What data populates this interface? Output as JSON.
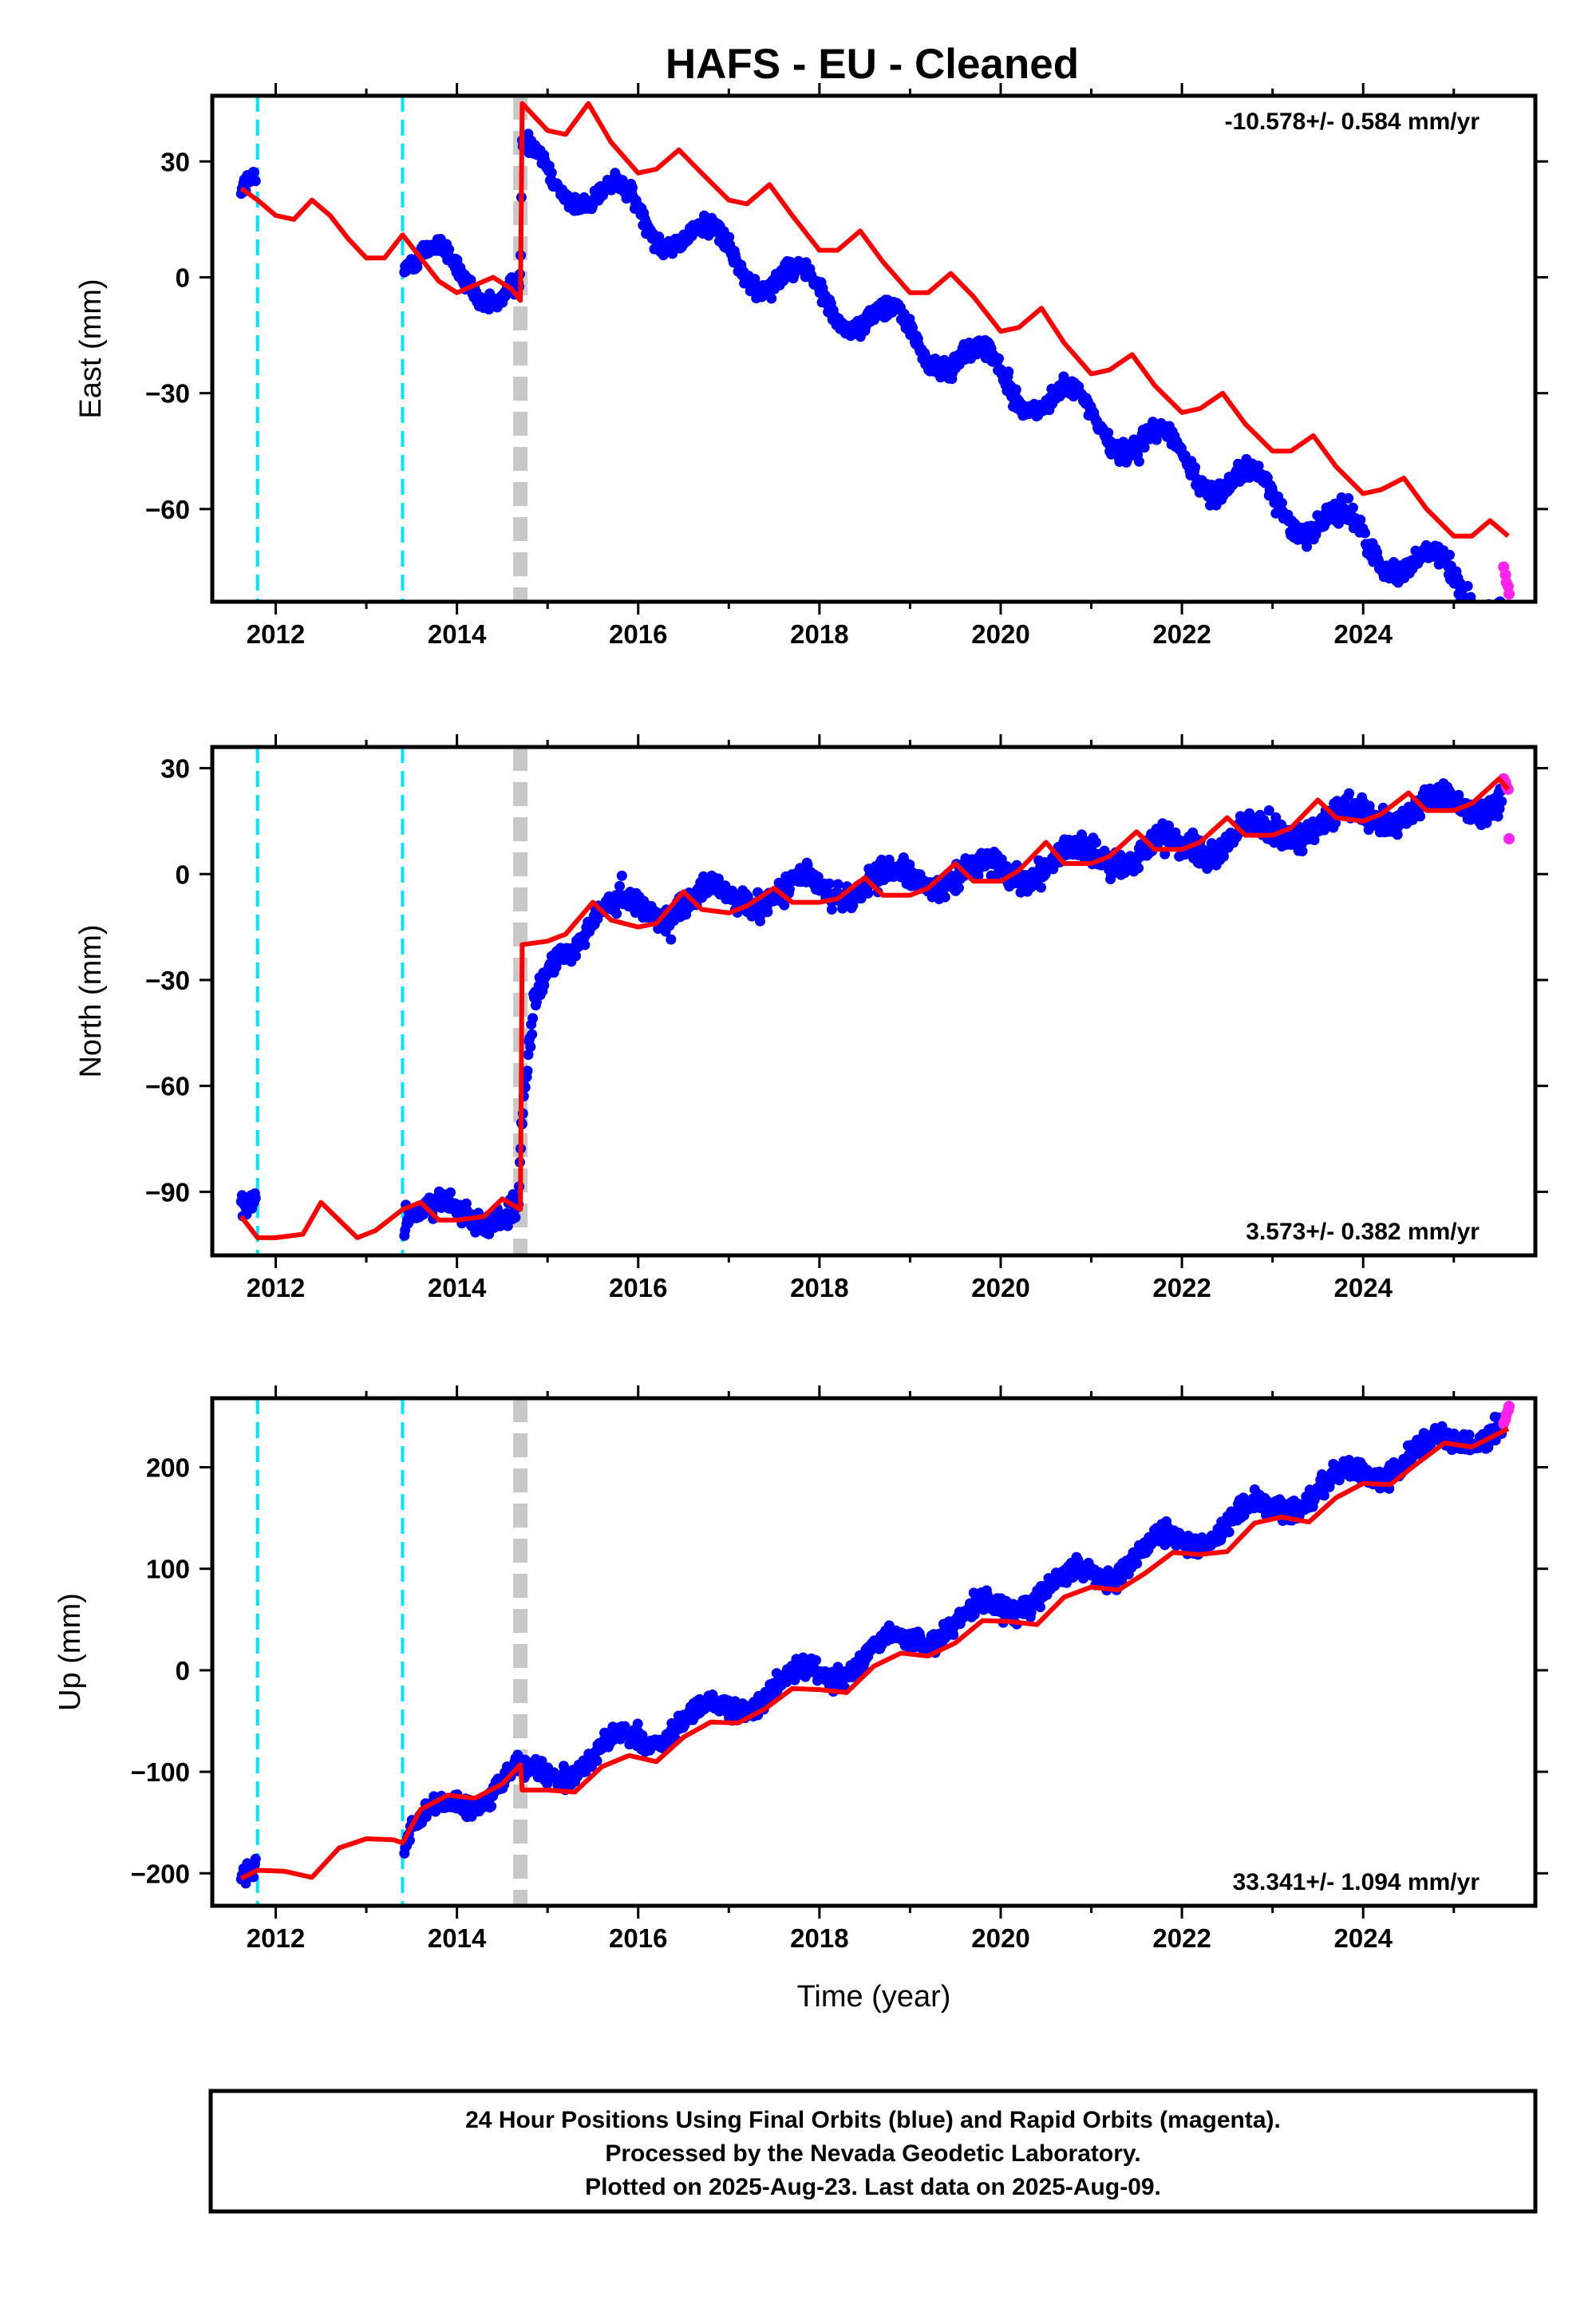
{
  "title": "HAFS  - EU - Cleaned",
  "colors": {
    "final_orbits": "#0000ff",
    "rapid_orbits": "#ff22ee",
    "model": "#ff0000",
    "equipment_change": "#00e5ff",
    "earthquake": "#c8c8c8"
  },
  "caption": {
    "line1": "24 Hour Positions Using Final Orbits (blue) and Rapid Orbits (magenta).",
    "line2": "Processed by the Nevada Geodetic Laboratory.",
    "line3": "Plotted on 2025-Aug-23. Last data on 2025-Aug-09."
  },
  "chart_data": [
    {
      "type": "scatter",
      "component": "East",
      "ylabel": "East (mm)",
      "xlabel": "",
      "rate_label": "-10.578+/- 0.584 mm/yr",
      "rate_position": "top-right",
      "xlim": [
        2011.3,
        2025.9
      ],
      "ylim": [
        -84,
        47
      ],
      "xticks": [
        "2012",
        "2014",
        "2016",
        "2018",
        "2020",
        "2022",
        "2024"
      ],
      "yticks": [
        "30",
        "0",
        "−30",
        "−60"
      ],
      "ytick_values": [
        30,
        0,
        -30,
        -60
      ],
      "equipment_changes": [
        2011.8,
        2013.4
      ],
      "earthquake": 2014.7,
      "trend": {
        "knots": [
          [
            2011.62,
            21
          ],
          [
            2012.0,
            18
          ],
          [
            2014.7,
            -5
          ],
          [
            2014.72,
            30
          ],
          [
            2025.6,
            -85
          ]
        ],
        "amp": 5.5,
        "phase": 0.55,
        "noise": 1.8
      },
      "model_line": [
        [
          2011.62,
          23
        ],
        [
          2011.8,
          20
        ],
        [
          2012.0,
          16
        ],
        [
          2012.2,
          15
        ],
        [
          2012.4,
          20
        ],
        [
          2012.6,
          16
        ],
        [
          2012.8,
          10
        ],
        [
          2013.0,
          5
        ],
        [
          2013.2,
          5
        ],
        [
          2013.4,
          11
        ],
        [
          2013.6,
          5
        ],
        [
          2013.8,
          -1
        ],
        [
          2014.0,
          -4
        ],
        [
          2014.2,
          -2
        ],
        [
          2014.4,
          0
        ],
        [
          2014.6,
          -3
        ],
        [
          2014.7,
          -6
        ],
        [
          2014.72,
          45
        ],
        [
          2015.0,
          38
        ],
        [
          2015.2,
          37
        ],
        [
          2015.45,
          45
        ],
        [
          2015.7,
          35
        ],
        [
          2016.0,
          27
        ],
        [
          2016.2,
          28
        ],
        [
          2016.45,
          33
        ],
        [
          2016.7,
          27
        ],
        [
          2017.0,
          20
        ],
        [
          2017.2,
          19
        ],
        [
          2017.45,
          24
        ],
        [
          2017.7,
          16
        ],
        [
          2018.0,
          7
        ],
        [
          2018.2,
          7
        ],
        [
          2018.45,
          12
        ],
        [
          2018.7,
          4
        ],
        [
          2019.0,
          -4
        ],
        [
          2019.2,
          -4
        ],
        [
          2019.45,
          1
        ],
        [
          2019.7,
          -5
        ],
        [
          2020.0,
          -14
        ],
        [
          2020.2,
          -13
        ],
        [
          2020.45,
          -8
        ],
        [
          2020.7,
          -17
        ],
        [
          2021.0,
          -25
        ],
        [
          2021.2,
          -24
        ],
        [
          2021.45,
          -20
        ],
        [
          2021.7,
          -28
        ],
        [
          2022.0,
          -35
        ],
        [
          2022.2,
          -34
        ],
        [
          2022.45,
          -30
        ],
        [
          2022.7,
          -38
        ],
        [
          2023.0,
          -45
        ],
        [
          2023.2,
          -45
        ],
        [
          2023.45,
          -41
        ],
        [
          2023.7,
          -49
        ],
        [
          2024.0,
          -56
        ],
        [
          2024.2,
          -55
        ],
        [
          2024.45,
          -52
        ],
        [
          2024.7,
          -60
        ],
        [
          2025.0,
          -67
        ],
        [
          2025.2,
          -67
        ],
        [
          2025.4,
          -63
        ],
        [
          2025.6,
          -67
        ]
      ],
      "rapid_points": [
        [
          2025.55,
          -75
        ],
        [
          2025.57,
          -77
        ],
        [
          2025.58,
          -79
        ],
        [
          2025.6,
          -80
        ],
        [
          2025.61,
          -82
        ]
      ]
    },
    {
      "type": "scatter",
      "component": "North",
      "ylabel": "North (mm)",
      "xlabel": "",
      "rate_label": "3.573+/- 0.382 mm/yr",
      "rate_position": "bottom-right",
      "xlim": [
        2011.3,
        2025.9
      ],
      "ylim": [
        -108,
        36
      ],
      "xticks": [
        "2012",
        "2014",
        "2016",
        "2018",
        "2020",
        "2022",
        "2024"
      ],
      "yticks": [
        "30",
        "0",
        "−30",
        "−60",
        "−90"
      ],
      "ytick_values": [
        30,
        0,
        -30,
        -60,
        -90
      ],
      "equipment_changes": [
        2011.8,
        2013.4
      ],
      "earthquake": 2014.7,
      "trend": {
        "knots": [
          [
            2011.62,
            -96
          ],
          [
            2014.68,
            -96
          ],
          [
            2014.72,
            -72
          ],
          [
            2014.85,
            -40
          ],
          [
            2015.1,
            -22
          ],
          [
            2015.5,
            -12
          ],
          [
            2016.2,
            -9
          ],
          [
            2018.0,
            -4
          ],
          [
            2020.0,
            1
          ],
          [
            2022.0,
            8
          ],
          [
            2025.6,
            22
          ]
        ],
        "amp": 3.5,
        "phase": 0.55,
        "noise": 2.5
      },
      "model_line": [
        [
          2011.62,
          -97
        ],
        [
          2011.8,
          -103
        ],
        [
          2012.0,
          -103
        ],
        [
          2012.3,
          -102
        ],
        [
          2012.5,
          -93
        ],
        [
          2012.7,
          -98
        ],
        [
          2012.9,
          -103
        ],
        [
          2013.1,
          -101
        ],
        [
          2013.4,
          -95
        ],
        [
          2013.6,
          -93
        ],
        [
          2013.8,
          -98
        ],
        [
          2014.0,
          -98
        ],
        [
          2014.3,
          -97
        ],
        [
          2014.5,
          -92
        ],
        [
          2014.7,
          -95
        ],
        [
          2014.72,
          -20
        ],
        [
          2015.0,
          -19
        ],
        [
          2015.2,
          -17
        ],
        [
          2015.5,
          -8
        ],
        [
          2015.7,
          -13
        ],
        [
          2016.0,
          -15
        ],
        [
          2016.2,
          -14
        ],
        [
          2016.5,
          -5
        ],
        [
          2016.7,
          -10
        ],
        [
          2017.0,
          -11
        ],
        [
          2017.2,
          -9
        ],
        [
          2017.5,
          -4
        ],
        [
          2017.7,
          -8
        ],
        [
          2018.0,
          -8
        ],
        [
          2018.2,
          -7
        ],
        [
          2018.5,
          -1
        ],
        [
          2018.7,
          -6
        ],
        [
          2019.0,
          -6
        ],
        [
          2019.2,
          -4
        ],
        [
          2019.5,
          3
        ],
        [
          2019.7,
          -2
        ],
        [
          2020.0,
          -2
        ],
        [
          2020.2,
          1
        ],
        [
          2020.5,
          9
        ],
        [
          2020.7,
          3
        ],
        [
          2021.0,
          3
        ],
        [
          2021.2,
          5
        ],
        [
          2021.5,
          12
        ],
        [
          2021.7,
          7
        ],
        [
          2022.0,
          7
        ],
        [
          2022.2,
          9
        ],
        [
          2022.5,
          16
        ],
        [
          2022.7,
          11
        ],
        [
          2023.0,
          11
        ],
        [
          2023.2,
          13
        ],
        [
          2023.5,
          21
        ],
        [
          2023.7,
          16
        ],
        [
          2024.0,
          15
        ],
        [
          2024.2,
          17
        ],
        [
          2024.5,
          23
        ],
        [
          2024.7,
          18
        ],
        [
          2025.0,
          18
        ],
        [
          2025.2,
          20
        ],
        [
          2025.5,
          27
        ],
        [
          2025.6,
          24
        ]
      ],
      "rapid_points": [
        [
          2025.55,
          27
        ],
        [
          2025.57,
          26
        ],
        [
          2025.58,
          25
        ],
        [
          2025.6,
          24
        ],
        [
          2025.61,
          10
        ]
      ]
    },
    {
      "type": "scatter",
      "component": "Up",
      "ylabel": "Up (mm)",
      "xlabel": "Time (year)",
      "rate_label": "33.341+/- 1.094 mm/yr",
      "rate_position": "bottom-right",
      "xlim": [
        2011.3,
        2025.9
      ],
      "ylim": [
        -232,
        268
      ],
      "xticks": [
        "2012",
        "2014",
        "2016",
        "2018",
        "2020",
        "2022",
        "2024"
      ],
      "yticks": [
        "200",
        "100",
        "0",
        "−100",
        "−200"
      ],
      "ytick_values": [
        200,
        100,
        0,
        -100,
        -200
      ],
      "equipment_changes": [
        2011.8,
        2013.4
      ],
      "earthquake": 2014.7,
      "trend": {
        "knots": [
          [
            2011.62,
            -212
          ],
          [
            2012.0,
            -200
          ],
          [
            2013.4,
            -170
          ],
          [
            2013.5,
            -155
          ],
          [
            2014.7,
            -100
          ],
          [
            2014.72,
            -110
          ],
          [
            2025.6,
            245
          ]
        ],
        "amp": 12,
        "phase": 0.5,
        "noise": 7
      },
      "model_line": [
        [
          2011.62,
          -205
        ],
        [
          2011.8,
          -197
        ],
        [
          2012.1,
          -198
        ],
        [
          2012.4,
          -204
        ],
        [
          2012.7,
          -175
        ],
        [
          2013.0,
          -166
        ],
        [
          2013.3,
          -167
        ],
        [
          2013.4,
          -170
        ],
        [
          2013.6,
          -137
        ],
        [
          2013.9,
          -123
        ],
        [
          2014.2,
          -126
        ],
        [
          2014.5,
          -112
        ],
        [
          2014.7,
          -93
        ],
        [
          2014.72,
          -118
        ],
        [
          2015.0,
          -118
        ],
        [
          2015.3,
          -120
        ],
        [
          2015.6,
          -95
        ],
        [
          2015.9,
          -84
        ],
        [
          2016.2,
          -90
        ],
        [
          2016.5,
          -66
        ],
        [
          2016.8,
          -51
        ],
        [
          2017.1,
          -52
        ],
        [
          2017.4,
          -38
        ],
        [
          2017.7,
          -18
        ],
        [
          2018.0,
          -19
        ],
        [
          2018.3,
          -22
        ],
        [
          2018.6,
          4
        ],
        [
          2018.9,
          17
        ],
        [
          2019.2,
          14
        ],
        [
          2019.5,
          27
        ],
        [
          2019.8,
          49
        ],
        [
          2020.1,
          48
        ],
        [
          2020.4,
          45
        ],
        [
          2020.7,
          72
        ],
        [
          2021.0,
          82
        ],
        [
          2021.3,
          79
        ],
        [
          2021.6,
          96
        ],
        [
          2021.9,
          116
        ],
        [
          2022.2,
          114
        ],
        [
          2022.5,
          117
        ],
        [
          2022.8,
          145
        ],
        [
          2023.1,
          151
        ],
        [
          2023.4,
          146
        ],
        [
          2023.7,
          170
        ],
        [
          2024.0,
          184
        ],
        [
          2024.3,
          183
        ],
        [
          2024.6,
          204
        ],
        [
          2024.9,
          224
        ],
        [
          2025.2,
          220
        ],
        [
          2025.6,
          238
        ]
      ],
      "rapid_points": [
        [
          2025.55,
          243
        ],
        [
          2025.57,
          247
        ],
        [
          2025.58,
          252
        ],
        [
          2025.6,
          256
        ],
        [
          2025.61,
          260
        ]
      ]
    }
  ]
}
